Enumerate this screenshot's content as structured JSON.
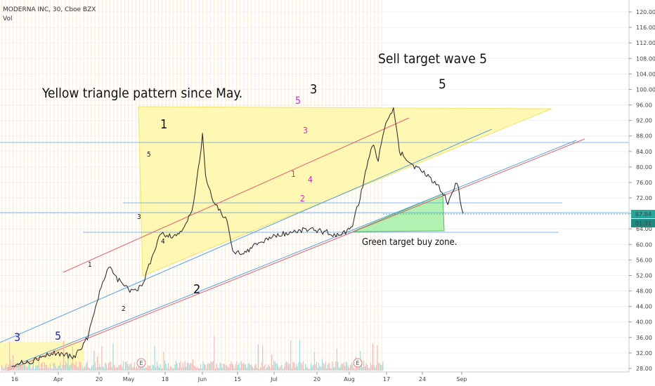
{
  "header": {
    "title": "MODERNA INC, 30, Cboe BZX",
    "indicator": "Vol"
  },
  "chart_data": {
    "type": "candlestick",
    "title": "MODERNA INC, 30, Cboe BZX",
    "y_axis": {
      "ticks": [
        "120.00",
        "116.00",
        "112.00",
        "108.00",
        "104.00",
        "100.00",
        "96.00",
        "92.00",
        "88.00",
        "84.00",
        "80.00",
        "76.00",
        "72.00",
        "68.00",
        "64.00",
        "60.00",
        "56.00",
        "52.00",
        "48.00",
        "44.00",
        "40.00",
        "36.00",
        "32.00",
        "28.00"
      ],
      "ylim": [
        26,
        122
      ]
    },
    "x_axis": {
      "ticks": [
        "16",
        "Apr",
        "20",
        "May",
        "18",
        "Jun",
        "15",
        "Jul",
        "20",
        "Aug",
        "17",
        "24",
        "Sep"
      ]
    },
    "price_labels": {
      "last_price": "67.84",
      "countdown": "01:31",
      "last_color": "#26a69a"
    },
    "price_series": [
      {
        "date": "Mar 16",
        "price": 29
      },
      {
        "date": "Mar 23",
        "price": 30
      },
      {
        "date": "Mar 30",
        "price": 32
      },
      {
        "date": "Apr 6",
        "price": 31
      },
      {
        "date": "Apr 10",
        "price": 36
      },
      {
        "date": "Apr 14",
        "price": 48
      },
      {
        "date": "Apr 17",
        "price": 54
      },
      {
        "date": "Apr 20",
        "price": 51
      },
      {
        "date": "Apr 24",
        "price": 48
      },
      {
        "date": "Apr 28",
        "price": 49
      },
      {
        "date": "May 4",
        "price": 63
      },
      {
        "date": "May 8",
        "price": 62
      },
      {
        "date": "May 12",
        "price": 64
      },
      {
        "date": "May 15",
        "price": 70
      },
      {
        "date": "May 18",
        "price": 88
      },
      {
        "date": "May 19",
        "price": 78
      },
      {
        "date": "May 21",
        "price": 72
      },
      {
        "date": "May 26",
        "price": 66
      },
      {
        "date": "May 28",
        "price": 58
      },
      {
        "date": "Jun 1",
        "price": 58
      },
      {
        "date": "Jun 5",
        "price": 60
      },
      {
        "date": "Jun 10",
        "price": 62
      },
      {
        "date": "Jun 15",
        "price": 63
      },
      {
        "date": "Jun 22",
        "price": 64
      },
      {
        "date": "Jun 29",
        "price": 63
      },
      {
        "date": "Jul 2",
        "price": 62
      },
      {
        "date": "Jul 6",
        "price": 64
      },
      {
        "date": "Jul 9",
        "price": 72
      },
      {
        "date": "Jul 13",
        "price": 86
      },
      {
        "date": "Jul 15",
        "price": 82
      },
      {
        "date": "Jul 17",
        "price": 90
      },
      {
        "date": "Jul 20",
        "price": 95
      },
      {
        "date": "Jul 22",
        "price": 84
      },
      {
        "date": "Jul 27",
        "price": 80
      },
      {
        "date": "Jul 31",
        "price": 78
      },
      {
        "date": "Aug 4",
        "price": 75
      },
      {
        "date": "Aug 7",
        "price": 71
      },
      {
        "date": "Aug 10",
        "price": 76
      },
      {
        "date": "Aug 12",
        "price": 68
      }
    ],
    "annotations": {
      "triangle_note": "Yellow triangle pattern since May.",
      "sell_target": "Sell target wave 5",
      "sell_wave_5": "5",
      "buy_zone": "Green target buy zone.",
      "wave_1_big": "1",
      "wave_2_big": "2",
      "wave_3_big": "3",
      "wave_3_left": "3",
      "wave_5_left": "5",
      "small_1a": "1",
      "small_2a": "2",
      "small_3a": "3",
      "small_4a": "4",
      "small_5a": "5",
      "m_1": "1",
      "m_2": "2",
      "m_3": "3",
      "m_4": "4",
      "m_5": "5",
      "earnings_1": "E",
      "earnings_2": "E"
    },
    "colors": {
      "triangle_fill": "#fff7a8",
      "buy_zone_fill": "#a8f0a8",
      "trend_red": "#e06070",
      "trend_blue": "#5aa0e0",
      "magenta": "#e020d0",
      "navy": "#1f2bb0",
      "up": "#26a69a",
      "down": "#ef5350"
    }
  }
}
